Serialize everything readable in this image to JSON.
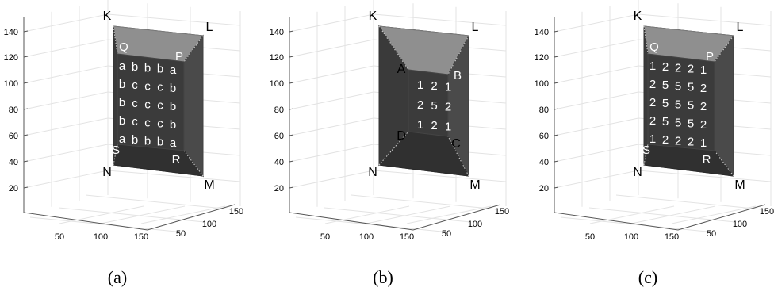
{
  "y_ticks": [
    "20",
    "40",
    "60",
    "80",
    "100",
    "120",
    "140"
  ],
  "x_ticks": [
    "50",
    "100",
    "150"
  ],
  "depth_ticks": [
    "50",
    "100",
    "150"
  ],
  "panels": [
    {
      "caption": "(a)",
      "vertices": {
        "K": "K",
        "L": "L",
        "M": "M",
        "N": "N"
      },
      "inner_labels": {
        "tl": "Q",
        "tr": "P",
        "bl": "S",
        "br": "R"
      },
      "grid": [
        [
          "a",
          "b",
          "b",
          "b",
          "a"
        ],
        [
          "b",
          "c",
          "c",
          "c",
          "b"
        ],
        [
          "b",
          "c",
          "c",
          "c",
          "b"
        ],
        [
          "b",
          "c",
          "c",
          "c",
          "b"
        ],
        [
          "a",
          "b",
          "b",
          "b",
          "a"
        ]
      ]
    },
    {
      "caption": "(b)",
      "vertices": {
        "K": "K",
        "L": "L",
        "M": "M",
        "N": "N"
      },
      "inner_labels": {
        "tl": "A",
        "tr": "B",
        "bl": "D",
        "br": "C"
      },
      "grid": [
        [
          "1",
          "2",
          "1"
        ],
        [
          "2",
          "5",
          "2"
        ],
        [
          "1",
          "2",
          "1"
        ]
      ]
    },
    {
      "caption": "(c)",
      "vertices": {
        "K": "K",
        "L": "L",
        "M": "M",
        "N": "N"
      },
      "inner_labels": {
        "tl": "Q",
        "tr": "P",
        "bl": "S",
        "br": "R"
      },
      "grid": [
        [
          "1",
          "2",
          "2",
          "2",
          "1"
        ],
        [
          "2",
          "5",
          "5",
          "5",
          "2"
        ],
        [
          "2",
          "5",
          "5",
          "5",
          "2"
        ],
        [
          "2",
          "5",
          "5",
          "5",
          "2"
        ],
        [
          "1",
          "2",
          "2",
          "2",
          "1"
        ]
      ]
    }
  ]
}
